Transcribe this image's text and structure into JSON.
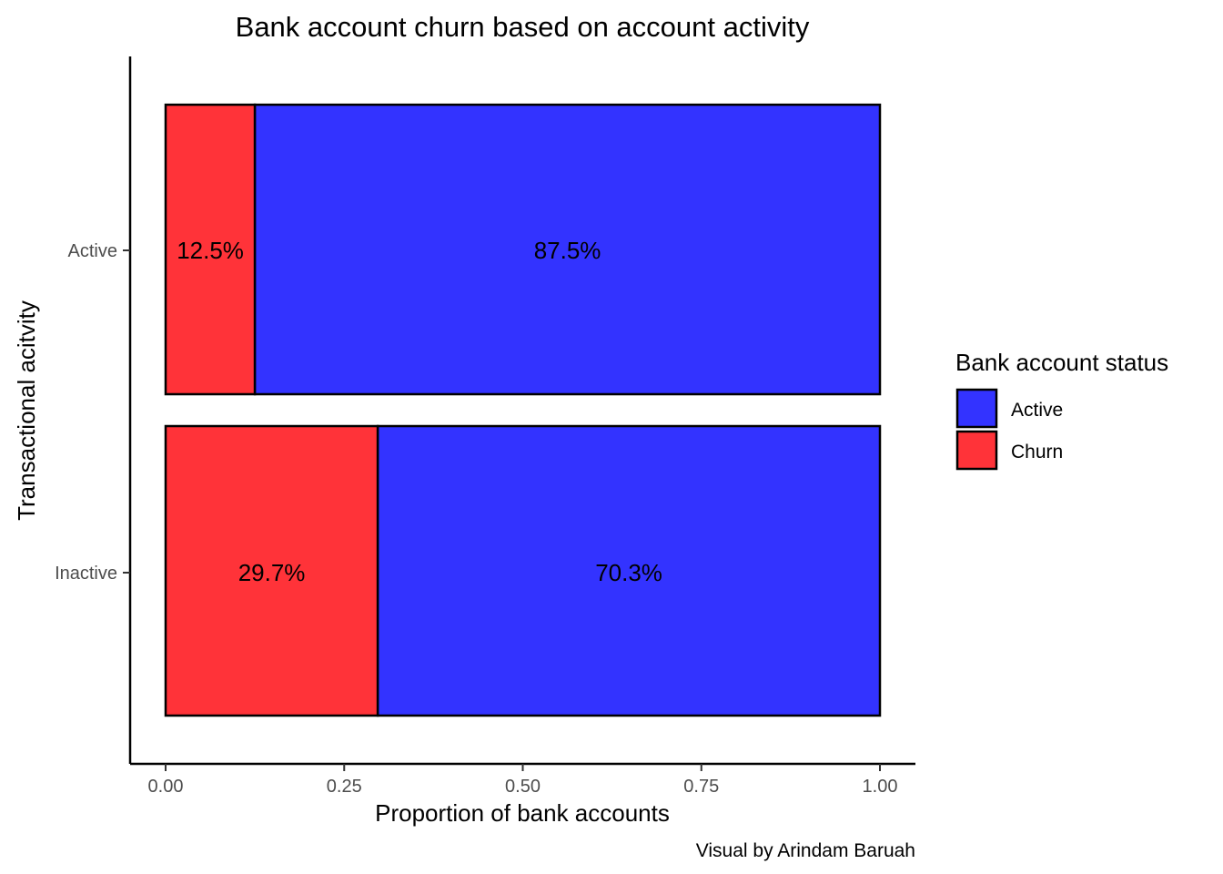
{
  "chart_data": {
    "type": "bar",
    "orientation": "horizontal",
    "stacked": true,
    "title": "Bank account churn based on account activity",
    "xlabel": "Proportion of bank accounts",
    "ylabel": "Transactional acitvity",
    "caption": "Visual by Arindam Baruah",
    "categories": [
      "Active",
      "Inactive"
    ],
    "series": [
      {
        "name": "Churn",
        "values": [
          0.125,
          0.297
        ],
        "labels": [
          "12.5%",
          "29.7%"
        ],
        "color": "#ff3339"
      },
      {
        "name": "Active",
        "values": [
          0.875,
          0.703
        ],
        "labels": [
          "87.5%",
          "70.3%"
        ],
        "color": "#3333ff"
      }
    ],
    "xlim": [
      0,
      1
    ],
    "xticks": [
      0,
      0.25,
      0.5,
      0.75,
      1
    ],
    "xtick_labels": [
      "0.00",
      "0.25",
      "0.50",
      "0.75",
      "1.00"
    ],
    "legend": {
      "title": "Bank account status",
      "placement": "right",
      "items": [
        {
          "name": "Active",
          "color": "#3333ff"
        },
        {
          "name": "Churn",
          "color": "#ff3339"
        }
      ]
    },
    "grid": false
  }
}
